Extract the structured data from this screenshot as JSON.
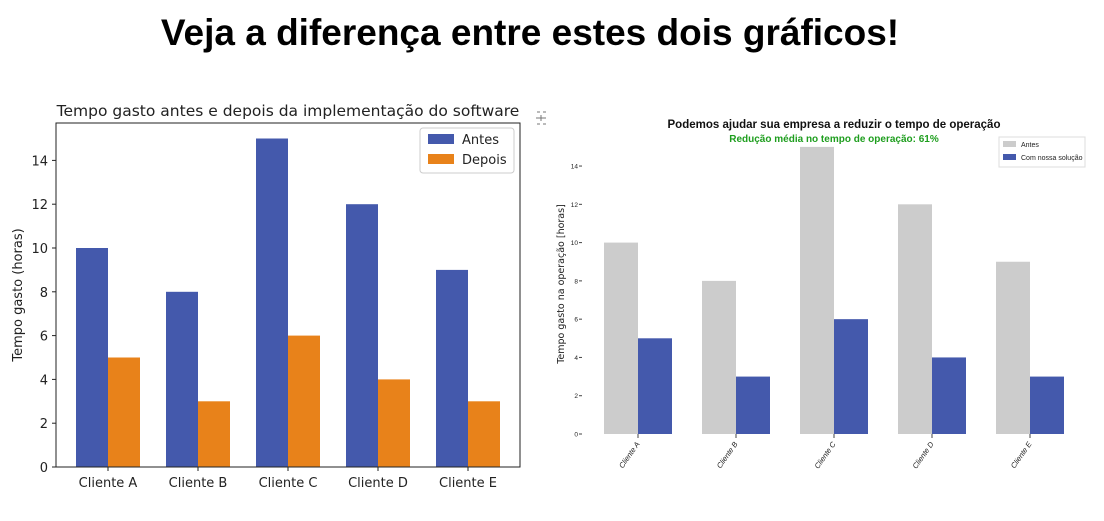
{
  "headline": "Veja a diferença entre estes dois gráficos!",
  "corner_icon": "collapse-output-icon",
  "chart_data": [
    {
      "type": "bar",
      "title": "Tempo gasto antes e depois da implementação do software",
      "xlabel": "",
      "ylabel": "Tempo gasto (horas)",
      "categories": [
        "Cliente A",
        "Cliente B",
        "Cliente C",
        "Cliente D",
        "Cliente E"
      ],
      "series": [
        {
          "name": "Antes",
          "values": [
            10,
            8,
            15,
            12,
            9
          ],
          "color": "#4459AC"
        },
        {
          "name": "Depois",
          "values": [
            5,
            3,
            6,
            4,
            3
          ],
          "color": "#E8821A"
        }
      ],
      "ylim": [
        0,
        15.75
      ],
      "yticks": [
        0,
        2,
        4,
        6,
        8,
        10,
        12,
        14
      ],
      "grid": false,
      "legend": "top-right"
    },
    {
      "type": "bar",
      "title": "Podemos ajudar sua empresa a reduzir o tempo de operação",
      "subtitle": "Redução média no tempo de operação: 61%",
      "subtitle_color": "#1E9E1E",
      "xlabel": "",
      "ylabel": "Tempo gasto na operação [horas]",
      "categories": [
        "Cliente A",
        "Cliente B",
        "Cliente C",
        "Cliente D",
        "Cliente E"
      ],
      "series": [
        {
          "name": "Antes",
          "values": [
            10,
            8,
            15,
            12,
            9
          ],
          "color": "#CCCCCC"
        },
        {
          "name": "Com nossa solução",
          "values": [
            5,
            3,
            6,
            4,
            3
          ],
          "color": "#4459AC"
        }
      ],
      "ylim": [
        0,
        15
      ],
      "yticks": [
        0,
        2,
        4,
        6,
        8,
        10,
        12,
        14
      ],
      "grid": false,
      "legend": "top-right"
    }
  ]
}
